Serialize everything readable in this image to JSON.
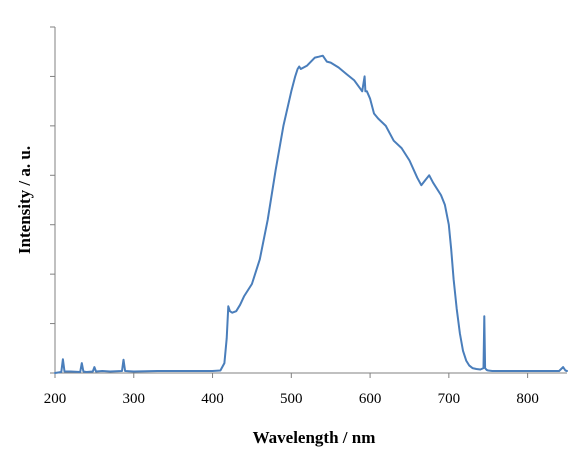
{
  "chart_data": {
    "type": "line",
    "title": "",
    "xlabel": "Wavelength / nm",
    "ylabel": "Intensity / a. u.",
    "xlim": [
      200,
      850
    ],
    "ylim": [
      0,
      7
    ],
    "x_ticks": [
      "200",
      "300",
      "400",
      "500",
      "600",
      "700",
      "800"
    ],
    "y_ticks_labeled": false,
    "grid": false,
    "legend": "none",
    "line_color": "#4a7ebb",
    "series": [
      {
        "x": [
          200,
          208,
          210,
          212,
          220,
          232,
          234,
          236,
          240,
          248,
          250,
          252,
          260,
          270,
          285,
          287,
          289,
          300,
          330,
          370,
          400,
          410,
          415,
          418,
          420,
          422,
          425,
          430,
          435,
          440,
          450,
          460,
          470,
          480,
          490,
          500,
          505,
          508,
          510,
          512,
          520,
          530,
          535,
          540,
          545,
          550,
          560,
          570,
          580,
          590,
          593,
          594,
          596,
          600,
          605,
          610,
          620,
          630,
          640,
          650,
          660,
          665,
          670,
          675,
          680,
          690,
          695,
          700,
          703,
          706,
          710,
          714,
          718,
          722,
          726,
          730,
          735,
          740,
          744,
          745,
          746,
          748,
          750,
          755,
          760,
          780,
          800,
          820,
          840,
          845,
          848,
          850
        ],
        "y": [
          0.0,
          0.02,
          0.28,
          0.03,
          0.03,
          0.02,
          0.2,
          0.03,
          0.02,
          0.03,
          0.12,
          0.03,
          0.04,
          0.03,
          0.04,
          0.27,
          0.04,
          0.03,
          0.04,
          0.04,
          0.04,
          0.05,
          0.2,
          0.7,
          1.35,
          1.25,
          1.22,
          1.25,
          1.38,
          1.55,
          1.8,
          2.3,
          3.1,
          4.1,
          5.0,
          5.7,
          6.0,
          6.15,
          6.2,
          6.15,
          6.22,
          6.38,
          6.4,
          6.42,
          6.3,
          6.28,
          6.18,
          6.05,
          5.92,
          5.7,
          6.0,
          5.7,
          5.7,
          5.55,
          5.25,
          5.15,
          5.0,
          4.7,
          4.55,
          4.3,
          3.95,
          3.8,
          3.9,
          4.0,
          3.85,
          3.6,
          3.4,
          3.0,
          2.5,
          1.9,
          1.3,
          0.8,
          0.45,
          0.25,
          0.15,
          0.1,
          0.08,
          0.07,
          0.1,
          1.15,
          0.1,
          0.06,
          0.05,
          0.04,
          0.04,
          0.04,
          0.04,
          0.04,
          0.04,
          0.12,
          0.05,
          0.04
        ]
      }
    ]
  }
}
